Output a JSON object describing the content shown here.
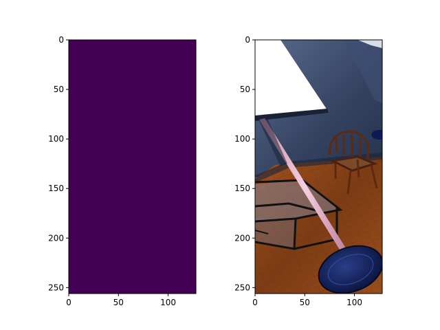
{
  "chart_data": [
    {
      "type": "heatmap",
      "title": "",
      "xlabel": "",
      "ylabel": "",
      "image_shape": [
        256,
        128
      ],
      "xlim": [
        0,
        128
      ],
      "ylim": [
        256,
        0
      ],
      "x_ticks": [
        0,
        50,
        100
      ],
      "y_ticks": [
        0,
        50,
        100,
        150,
        200,
        250
      ],
      "values": "uniform single value across all pixels",
      "fill_color": "#440154",
      "colormap": "viridis"
    },
    {
      "type": "image",
      "title": "",
      "xlabel": "",
      "ylabel": "",
      "image_shape": [
        256,
        128
      ],
      "xlim": [
        0,
        128
      ],
      "ylim": [
        256,
        0
      ],
      "x_ticks": [
        0,
        50,
        100
      ],
      "y_ticks": [
        0,
        50,
        100,
        150,
        200,
        250
      ],
      "content": "rendered indoor room scene: floor lamp with white shade and pink pole on a navy base, wooden chair, glass side table, dark blue walls, wooden floor",
      "colors": {
        "wall": "#2e3d5e",
        "wall_light": "#4d5f85",
        "floor": "#8a4418",
        "lampshade": "#ffffff",
        "pole": "#e8b4cc",
        "base": "#0f1d4a",
        "chair": "#6a2e14"
      }
    }
  ]
}
